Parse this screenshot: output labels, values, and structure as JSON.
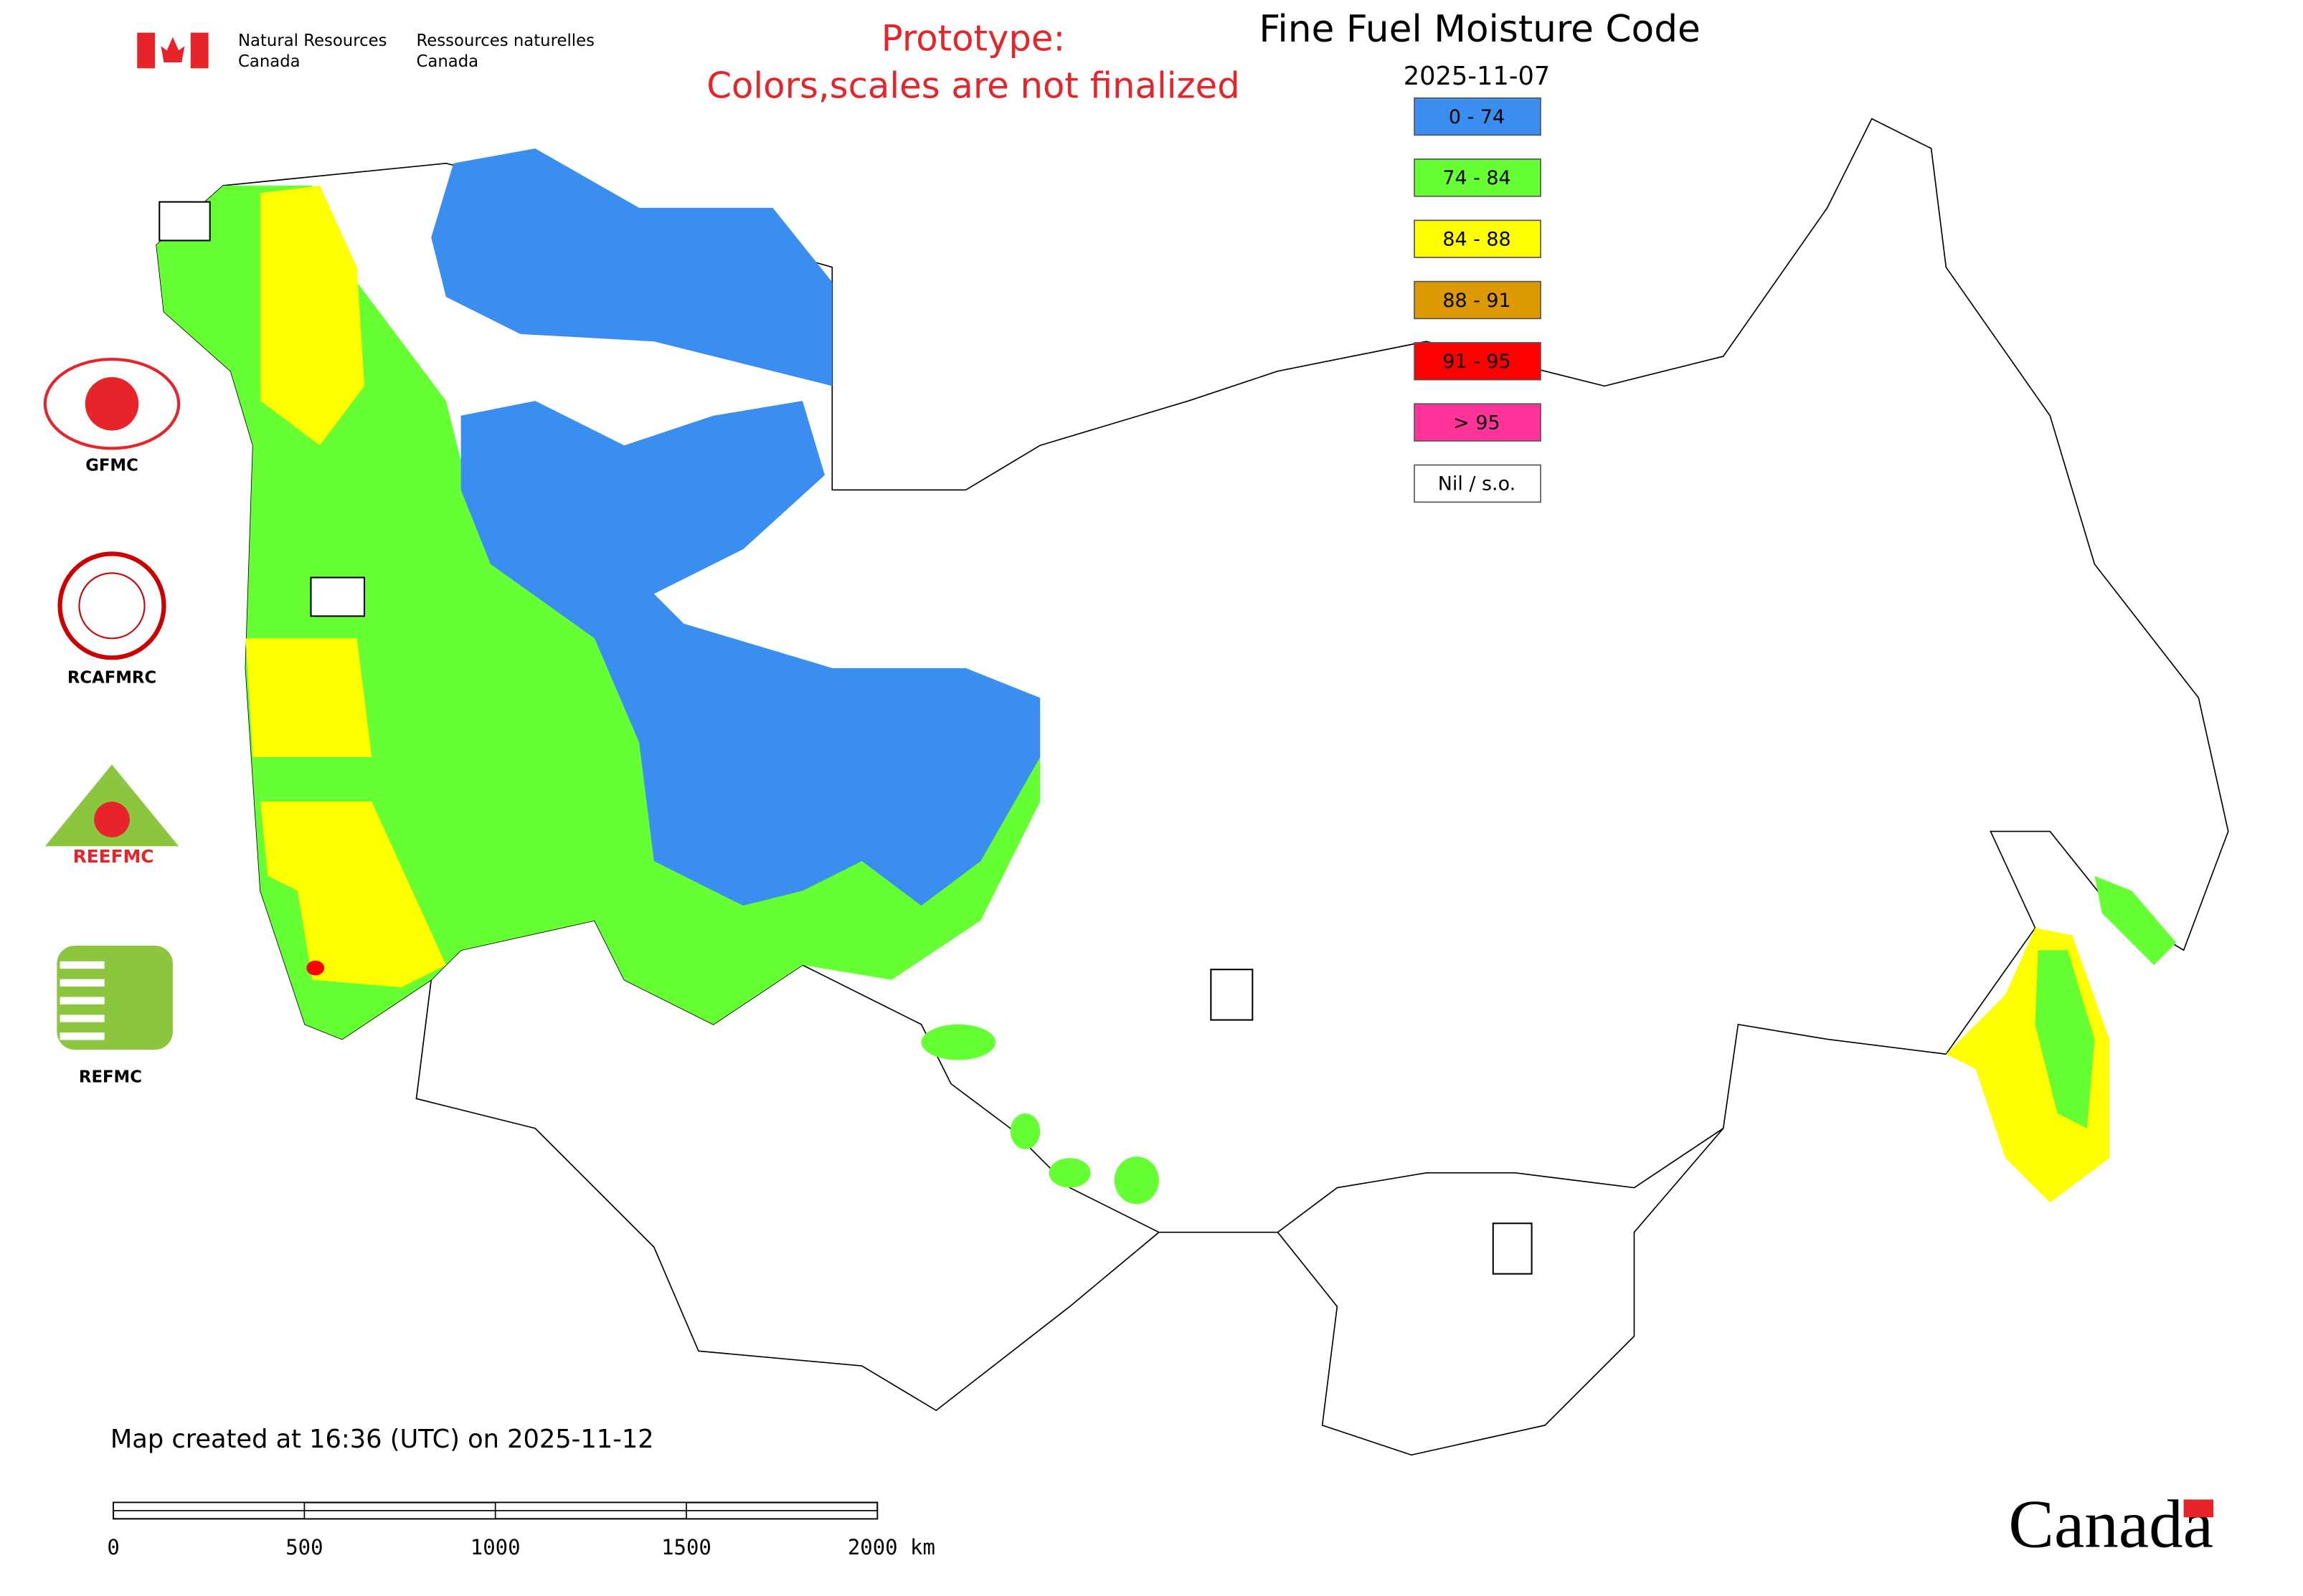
{
  "header": {
    "org_en": [
      "Natural Resources",
      "Canada"
    ],
    "org_fr": [
      "Ressources naturelles",
      "Canada"
    ],
    "notice": [
      "Prototype:",
      "Colors,scales are not finalized"
    ],
    "title": "Fine Fuel Moisture Code",
    "date": "2025-11-07"
  },
  "legend": [
    {
      "label": "0 - 74",
      "color": "#3a8ef0"
    },
    {
      "label": "74 - 84",
      "color": "#66ff33"
    },
    {
      "label": "84 - 88",
      "color": "#ffff00"
    },
    {
      "label": "88 - 91",
      "color": "#dd9a00"
    },
    {
      "label": "91 - 95",
      "color": "#ff0000"
    },
    {
      "label": "> 95",
      "color": "#ff3399"
    },
    {
      "label": "Nil / s.o.",
      "color": "#ffffff"
    }
  ],
  "logos": [
    "GFMC",
    "RCAFMRC",
    "REEFMC",
    "REFMC"
  ],
  "footer": {
    "created": "Map created at 16:36 (UTC) on 2025-11-12",
    "scale": [
      "0",
      "500",
      "1000",
      "1500",
      "2000 km"
    ],
    "wordmark": "Canada"
  }
}
